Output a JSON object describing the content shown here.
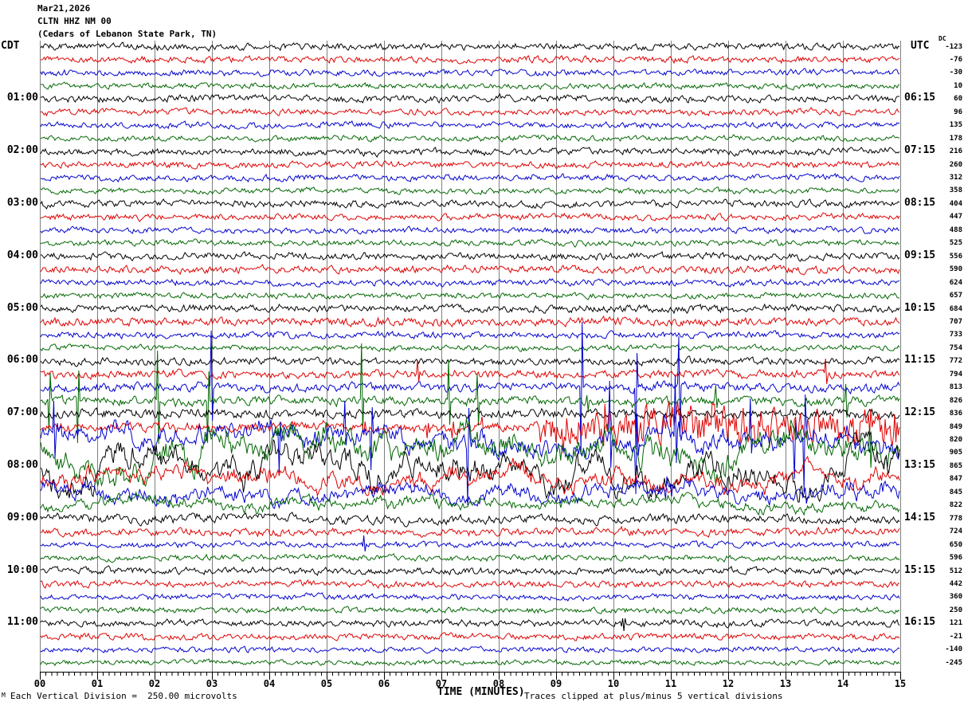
{
  "title": {
    "date": "Mar21,2026",
    "station": "CLTN HHZ NM 00",
    "location": "(Cedars of Lebanon State Park, TN)"
  },
  "axes": {
    "left_tz_label": "CDT",
    "right_tz_label": "UTC",
    "dc_header": "DC",
    "x_title": "TIME (MINUTES)",
    "x_ticks": [
      "00",
      "01",
      "02",
      "03",
      "04",
      "05",
      "06",
      "07",
      "08",
      "09",
      "10",
      "11",
      "12",
      "13",
      "14",
      "15"
    ]
  },
  "footer": {
    "scale_note": "Each Vertical Division =  250.00 microvolts",
    "clip_note": "Traces clipped at plus/minus 5 vertical divisions",
    "corner_glyph": "M"
  },
  "colors": {
    "background": "#ffffff",
    "grid": "#7f7f7f",
    "axis": "#000000",
    "trace": {
      "black": "#000000",
      "red": "#dd0000",
      "blue": "#0000cc",
      "green": "#006600"
    }
  },
  "chart_data": {
    "type": "line",
    "title": "CLTN HHZ NM 00 helicorder, Mar21,2026",
    "xlabel": "TIME (MINUTES)",
    "x_range": [
      0,
      15
    ],
    "minutes_per_row": 15,
    "row_start_cdt": "00:00",
    "vertical_division_microvolts": 250.0,
    "clip_divisions": 5,
    "rows": [
      {
        "c": "black",
        "dc": -123,
        "amp": 3.6,
        "w": 1.2
      },
      {
        "c": "red",
        "dc": -76,
        "amp": 3.4,
        "w": 1.0
      },
      {
        "c": "blue",
        "dc": -30,
        "amp": 3.2,
        "w": 1.0
      },
      {
        "c": "green",
        "dc": 10,
        "amp": 2.9,
        "w": 0.9
      },
      {
        "c": "black",
        "dc": 60,
        "cdt": "01:00",
        "utc": "06:15",
        "amp": 3.6,
        "w": 1.2
      },
      {
        "c": "red",
        "dc": 96,
        "amp": 3.3,
        "w": 1.0
      },
      {
        "c": "blue",
        "dc": 135,
        "amp": 3.1,
        "w": 1.0
      },
      {
        "c": "green",
        "dc": 178,
        "amp": 2.9,
        "w": 0.9
      },
      {
        "c": "black",
        "dc": 216,
        "cdt": "02:00",
        "utc": "07:15",
        "amp": 3.6,
        "w": 1.2
      },
      {
        "c": "red",
        "dc": 260,
        "amp": 3.4,
        "w": 1.0
      },
      {
        "c": "blue",
        "dc": 312,
        "amp": 3.2,
        "w": 1.0
      },
      {
        "c": "green",
        "dc": 358,
        "amp": 2.9,
        "w": 0.9
      },
      {
        "c": "black",
        "dc": 404,
        "cdt": "03:00",
        "utc": "08:15",
        "amp": 3.6,
        "w": 1.2
      },
      {
        "c": "red",
        "dc": 447,
        "amp": 3.4,
        "w": 1.0
      },
      {
        "c": "blue",
        "dc": 488,
        "amp": 3.1,
        "w": 1.0
      },
      {
        "c": "green",
        "dc": 525,
        "amp": 3.0,
        "w": 0.9
      },
      {
        "c": "black",
        "dc": 556,
        "cdt": "04:00",
        "utc": "09:15",
        "amp": 3.6,
        "w": 1.2
      },
      {
        "c": "red",
        "dc": 590,
        "amp": 3.8,
        "w": 1.1
      },
      {
        "c": "blue",
        "dc": 624,
        "amp": 3.2,
        "w": 1.0
      },
      {
        "c": "green",
        "dc": 657,
        "amp": 3.0,
        "w": 0.9
      },
      {
        "c": "black",
        "dc": 684,
        "cdt": "05:00",
        "utc": "10:15",
        "amp": 3.8,
        "w": 1.3
      },
      {
        "c": "red",
        "dc": 707,
        "amp": 4.4,
        "w": 1.2
      },
      {
        "c": "blue",
        "dc": 733,
        "amp": 3.4,
        "w": 1.0
      },
      {
        "c": "green",
        "dc": 754,
        "amp": 3.0,
        "w": 0.9
      },
      {
        "c": "black",
        "dc": 772,
        "cdt": "06:00",
        "utc": "11:15",
        "amp": 3.8,
        "w": 1.4
      },
      {
        "c": "red",
        "dc": 794,
        "amp": 4.2,
        "w": 1.5,
        "sr": 0.0015,
        "sa": 20
      },
      {
        "c": "blue",
        "dc": 813,
        "amp": 4.5,
        "w": 2.0,
        "sr": 0.012,
        "sa": 78,
        "senv": [
          [
            0,
            1.3,
            0.1
          ],
          [
            1.3,
            9,
            1
          ],
          [
            9,
            11.5,
            1.7
          ],
          [
            11.5,
            15,
            1
          ]
        ]
      },
      {
        "c": "green",
        "dc": 826,
        "amp": 4.5,
        "w": 2.5,
        "sr": 0.02,
        "sa": 76,
        "senv": [
          [
            0,
            9,
            1
          ],
          [
            9,
            15,
            0.3
          ]
        ]
      },
      {
        "c": "black",
        "dc": 836,
        "cdt": "07:00",
        "utc": "12:15",
        "amp": 5.0,
        "w": 2.0
      },
      {
        "c": "red",
        "dc": 849,
        "amp": 5.0,
        "w": 2.0,
        "sr": 0.012,
        "sa": 14,
        "env": [
          [
            0,
            8.7,
            1
          ],
          [
            8.7,
            15,
            4.5
          ]
        ]
      },
      {
        "c": "blue",
        "dc": 820,
        "amp": 9.0,
        "w": 16,
        "sr": 0.013,
        "sa": 70
      },
      {
        "c": "green",
        "dc": 905,
        "amp": 9.0,
        "w": 30,
        "sr": 0.005,
        "sa": 50
      },
      {
        "c": "black",
        "dc": 865,
        "cdt": "08:00",
        "utc": "13:15",
        "amp": 8.0,
        "w": 32,
        "sr": 0.001,
        "sa": 25
      },
      {
        "c": "red",
        "dc": 847,
        "amp": 7.0,
        "w": 16,
        "sr": 0.002,
        "sa": 20
      },
      {
        "c": "blue",
        "dc": 845,
        "amp": 6.0,
        "w": 13,
        "sr": 0.0015,
        "sa": 15
      },
      {
        "c": "green",
        "dc": 822,
        "amp": 4.5,
        "w": 9
      },
      {
        "c": "black",
        "dc": 778,
        "cdt": "09:00",
        "utc": "14:15",
        "amp": 4.2,
        "w": 3.5
      },
      {
        "c": "red",
        "dc": 724,
        "amp": 3.8,
        "w": 1.8
      },
      {
        "c": "blue",
        "dc": 650,
        "amp": 3.0,
        "w": 1.0,
        "marks": [
          [
            5.65,
            13
          ]
        ]
      },
      {
        "c": "green",
        "dc": 596,
        "amp": 3.2,
        "w": 1.2
      },
      {
        "c": "black",
        "dc": 512,
        "cdt": "10:00",
        "utc": "15:15",
        "amp": 3.5,
        "w": 1.2
      },
      {
        "c": "red",
        "dc": 442,
        "amp": 3.4,
        "w": 1.0
      },
      {
        "c": "blue",
        "dc": 360,
        "amp": 3.0,
        "w": 0.9
      },
      {
        "c": "green",
        "dc": 250,
        "amp": 3.0,
        "w": 0.9
      },
      {
        "c": "black",
        "dc": 121,
        "cdt": "11:00",
        "utc": "16:15",
        "amp": 3.4,
        "w": 1.1,
        "marks": [
          [
            10.18,
            -26
          ]
        ]
      },
      {
        "c": "red",
        "dc": -21,
        "amp": 3.2,
        "w": 1.0
      },
      {
        "c": "blue",
        "dc": -140,
        "amp": 2.8,
        "w": 0.8
      },
      {
        "c": "green",
        "dc": -245,
        "amp": 2.7,
        "w": 0.8
      }
    ]
  }
}
